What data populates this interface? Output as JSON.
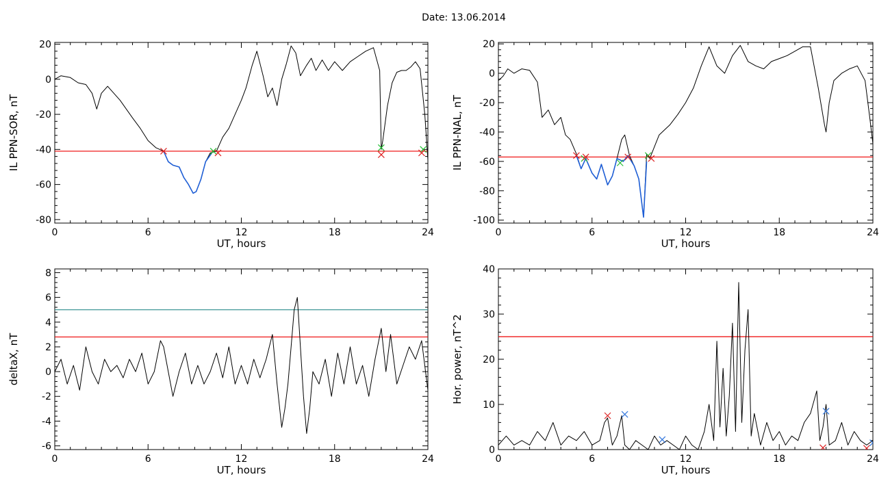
{
  "header": {
    "date_label": "Date:  13.06.2014"
  },
  "colors": {
    "trace": "#000000",
    "threshold": "#ee0000",
    "highlight": "#1f5fd6",
    "marker_red": "#dd2222",
    "marker_green": "#22bb33",
    "marker_blue": "#3377dd",
    "level_teal": "#2a8c8c"
  },
  "chart_data": [
    {
      "type": "line",
      "ylabel": "IL PPN-SOR, nT",
      "xlabel": "UT, hours",
      "xlim": [
        0,
        24
      ],
      "ylim": [
        -82,
        21
      ],
      "xticks": [
        0,
        6,
        12,
        18,
        24
      ],
      "yticks": [
        -80,
        -60,
        -40,
        -20,
        0,
        20
      ],
      "threshold": -41,
      "series": [
        {
          "role": "trace",
          "x": [
            0,
            0.4,
            1,
            1.5,
            2,
            2.4,
            2.7,
            3,
            3.4,
            3.8,
            4.2,
            4.6,
            5,
            5.5,
            6,
            6.5,
            7,
            7.3,
            7.6,
            8,
            8.3,
            8.6,
            8.9,
            9.1,
            9.4,
            9.7,
            10,
            10.4,
            10.8,
            11.2,
            11.6,
            12,
            12.3,
            12.7,
            13,
            13.4,
            13.7,
            14,
            14.3,
            14.6,
            14.9,
            15.2,
            15.5,
            15.8,
            16.2,
            16.5,
            16.8,
            17.2,
            17.6,
            18,
            18.5,
            19,
            19.5,
            20,
            20.5,
            20.9,
            21,
            21.1,
            21.4,
            21.7,
            22,
            22.3,
            22.6,
            22.9,
            23.2,
            23.5,
            23.8,
            24
          ],
          "y": [
            0,
            2,
            1,
            -2,
            -3,
            -8,
            -17,
            -8,
            -4,
            -8,
            -12,
            -17,
            -22,
            -28,
            -35,
            -39,
            -41,
            -47,
            -49,
            -50,
            -56,
            -60,
            -65,
            -64,
            -57,
            -47,
            -42,
            -41,
            -33,
            -28,
            -20,
            -12,
            -5,
            8,
            16,
            2,
            -10,
            -5,
            -15,
            0,
            9,
            19,
            15,
            2,
            8,
            12,
            5,
            11,
            5,
            10,
            5,
            10,
            13,
            16,
            18,
            5,
            -40,
            -35,
            -15,
            -2,
            4,
            5,
            5,
            7,
            10,
            6,
            -20,
            -46
          ]
        },
        {
          "role": "highlight",
          "x": [
            7,
            7.3,
            7.6,
            8,
            8.3,
            8.6,
            8.9,
            9.1,
            9.4,
            9.7,
            10.1
          ],
          "y": [
            -41,
            -47,
            -49,
            -50,
            -56,
            -60,
            -65,
            -64,
            -57,
            -47,
            -42
          ]
        }
      ],
      "markers": [
        {
          "x": 7,
          "y": -41,
          "color": "red"
        },
        {
          "x": 10.2,
          "y": -41,
          "color": "green"
        },
        {
          "x": 10.5,
          "y": -42,
          "color": "red"
        },
        {
          "x": 21,
          "y": -39,
          "color": "green"
        },
        {
          "x": 21,
          "y": -43,
          "color": "red"
        },
        {
          "x": 23.7,
          "y": -40,
          "color": "green"
        },
        {
          "x": 23.6,
          "y": -42,
          "color": "red"
        }
      ]
    },
    {
      "type": "line",
      "ylabel": "IL PPN-NAL, nT",
      "xlabel": "UT, hours",
      "xlim": [
        0,
        24
      ],
      "ylim": [
        -102,
        21
      ],
      "xticks": [
        0,
        6,
        12,
        18,
        24
      ],
      "yticks": [
        -100,
        -80,
        -60,
        -40,
        -20,
        0,
        20
      ],
      "threshold": -57,
      "series": [
        {
          "role": "trace",
          "x": [
            0,
            0.3,
            0.6,
            1,
            1.5,
            2,
            2.5,
            2.8,
            3.2,
            3.6,
            4,
            4.3,
            4.6,
            5,
            5.3,
            5.6,
            6,
            6.3,
            6.6,
            7,
            7.3,
            7.6,
            7.9,
            8.1,
            8.4,
            8.7,
            9,
            9.3,
            9.5,
            9.7,
            10,
            10.3,
            10.7,
            11,
            11.5,
            12,
            12.5,
            13,
            13.5,
            14,
            14.5,
            15,
            15.5,
            16,
            16.5,
            17,
            17.5,
            18,
            18.5,
            19,
            19.5,
            20,
            20.5,
            20.9,
            21,
            21.2,
            21.5,
            22,
            22.5,
            23,
            23.5,
            23.8,
            24
          ],
          "y": [
            -5,
            -2,
            3,
            0,
            3,
            2,
            -6,
            -30,
            -25,
            -35,
            -30,
            -42,
            -45,
            -55,
            -65,
            -58,
            -68,
            -72,
            -62,
            -76,
            -70,
            -58,
            -45,
            -42,
            -56,
            -63,
            -72,
            -98,
            -55,
            -58,
            -50,
            -42,
            -38,
            -35,
            -28,
            -20,
            -10,
            5,
            18,
            5,
            0,
            12,
            19,
            8,
            5,
            3,
            8,
            10,
            12,
            15,
            18,
            18,
            -10,
            -35,
            -40,
            -20,
            -5,
            0,
            3,
            5,
            -5,
            -30,
            -48
          ]
        },
        {
          "role": "highlight",
          "x": [
            5,
            5.3,
            5.6,
            6,
            6.3,
            6.6,
            7,
            7.3,
            7.6,
            8,
            8.3,
            8.7,
            9,
            9.3,
            9.5
          ],
          "y": [
            -56,
            -65,
            -58,
            -68,
            -72,
            -62,
            -76,
            -70,
            -58,
            -60,
            -56,
            -63,
            -72,
            -98,
            -60
          ]
        }
      ],
      "markers": [
        {
          "x": 5,
          "y": -56,
          "color": "red"
        },
        {
          "x": 5.5,
          "y": -58,
          "color": "green"
        },
        {
          "x": 5.6,
          "y": -57,
          "color": "red"
        },
        {
          "x": 7.8,
          "y": -61,
          "color": "green"
        },
        {
          "x": 8.3,
          "y": -57,
          "color": "red"
        },
        {
          "x": 9.6,
          "y": -56,
          "color": "green"
        },
        {
          "x": 9.8,
          "y": -58,
          "color": "red"
        }
      ]
    },
    {
      "type": "line",
      "ylabel": "deltaX, nT",
      "xlabel": "UT, hours",
      "xlim": [
        0,
        24
      ],
      "ylim": [
        -6.3,
        8.3
      ],
      "xticks": [
        0,
        6,
        12,
        18,
        24
      ],
      "yticks": [
        -6,
        -4,
        -2,
        0,
        2,
        4,
        6,
        8
      ],
      "threshold": 2.8,
      "level": 5,
      "series": [
        {
          "role": "trace",
          "x": [
            0,
            0.4,
            0.8,
            1.2,
            1.6,
            2,
            2.4,
            2.8,
            3.2,
            3.6,
            4,
            4.4,
            4.8,
            5.2,
            5.6,
            6,
            6.4,
            6.8,
            7,
            7.3,
            7.6,
            8,
            8.4,
            8.8,
            9.2,
            9.6,
            10,
            10.4,
            10.8,
            11.2,
            11.6,
            12,
            12.4,
            12.8,
            13.2,
            13.6,
            14,
            14.3,
            14.6,
            14.8,
            15,
            15.2,
            15.4,
            15.6,
            15.8,
            16,
            16.2,
            16.4,
            16.6,
            17,
            17.4,
            17.8,
            18.2,
            18.6,
            19,
            19.4,
            19.8,
            20.2,
            20.6,
            21,
            21.3,
            21.6,
            22,
            22.4,
            22.8,
            23.2,
            23.6,
            24
          ],
          "y": [
            0,
            1,
            -1,
            0.5,
            -1.5,
            2,
            0,
            -1,
            1,
            0,
            0.5,
            -0.5,
            1,
            0,
            1.5,
            -1,
            0,
            2.5,
            2,
            0,
            -2,
            0,
            1.5,
            -1,
            0.5,
            -1,
            0,
            1.5,
            -0.5,
            2,
            -1,
            0.5,
            -1,
            1,
            -0.5,
            1,
            3,
            -1,
            -4.5,
            -3,
            -1,
            2,
            5,
            6,
            2,
            -2,
            -5,
            -3,
            0,
            -1,
            1,
            -2,
            1.5,
            -1,
            2,
            -1,
            0.5,
            -2,
            1,
            3.5,
            0,
            3,
            -1,
            0.5,
            2,
            1,
            2.5,
            -1.5
          ]
        }
      ],
      "markers": []
    },
    {
      "type": "line",
      "ylabel": "Hor. power, nT^2",
      "xlabel": "UT, hours",
      "xlim": [
        0,
        24
      ],
      "ylim": [
        0,
        40
      ],
      "xticks": [
        0,
        6,
        12,
        18,
        24
      ],
      "yticks": [
        0,
        10,
        20,
        30,
        40
      ],
      "threshold": 25,
      "series": [
        {
          "role": "trace",
          "x": [
            0,
            0.5,
            1,
            1.5,
            2,
            2.5,
            3,
            3.5,
            4,
            4.5,
            5,
            5.5,
            6,
            6.5,
            6.8,
            7,
            7.3,
            7.6,
            7.9,
            8.1,
            8.4,
            8.8,
            9.2,
            9.6,
            10,
            10.4,
            10.8,
            11.2,
            11.6,
            12,
            12.4,
            12.8,
            13.2,
            13.5,
            13.8,
            14,
            14.2,
            14.4,
            14.6,
            14.8,
            15,
            15.2,
            15.4,
            15.6,
            15.8,
            16,
            16.2,
            16.4,
            16.8,
            17.2,
            17.6,
            18,
            18.4,
            18.8,
            19.2,
            19.6,
            20,
            20.4,
            20.6,
            20.8,
            21,
            21.2,
            21.6,
            22,
            22.4,
            22.8,
            23.2,
            23.6,
            24
          ],
          "y": [
            1,
            3,
            1,
            2,
            1,
            4,
            2,
            6,
            1,
            3,
            2,
            4,
            1,
            2,
            6,
            7,
            1,
            3,
            7.5,
            1,
            0,
            2,
            1,
            0,
            3,
            1,
            2,
            1,
            0,
            3,
            1,
            0,
            4,
            10,
            2,
            24,
            5,
            18,
            3,
            12,
            28,
            4,
            37,
            6,
            22,
            31,
            3,
            8,
            1,
            6,
            2,
            4,
            1,
            3,
            2,
            6,
            8,
            13,
            2,
            5,
            10,
            1,
            2,
            6,
            1,
            4,
            2,
            1,
            2
          ]
        }
      ],
      "markers": [
        {
          "x": 7,
          "y": 7.5,
          "color": "red"
        },
        {
          "x": 8.1,
          "y": 7.8,
          "color": "blue"
        },
        {
          "x": 10.5,
          "y": 2.2,
          "color": "blue"
        },
        {
          "x": 21,
          "y": 8.5,
          "color": "blue"
        },
        {
          "x": 20.8,
          "y": 0.4,
          "color": "red"
        },
        {
          "x": 23.6,
          "y": 0.3,
          "color": "red"
        },
        {
          "x": 24,
          "y": 1.5,
          "color": "blue"
        }
      ]
    }
  ]
}
